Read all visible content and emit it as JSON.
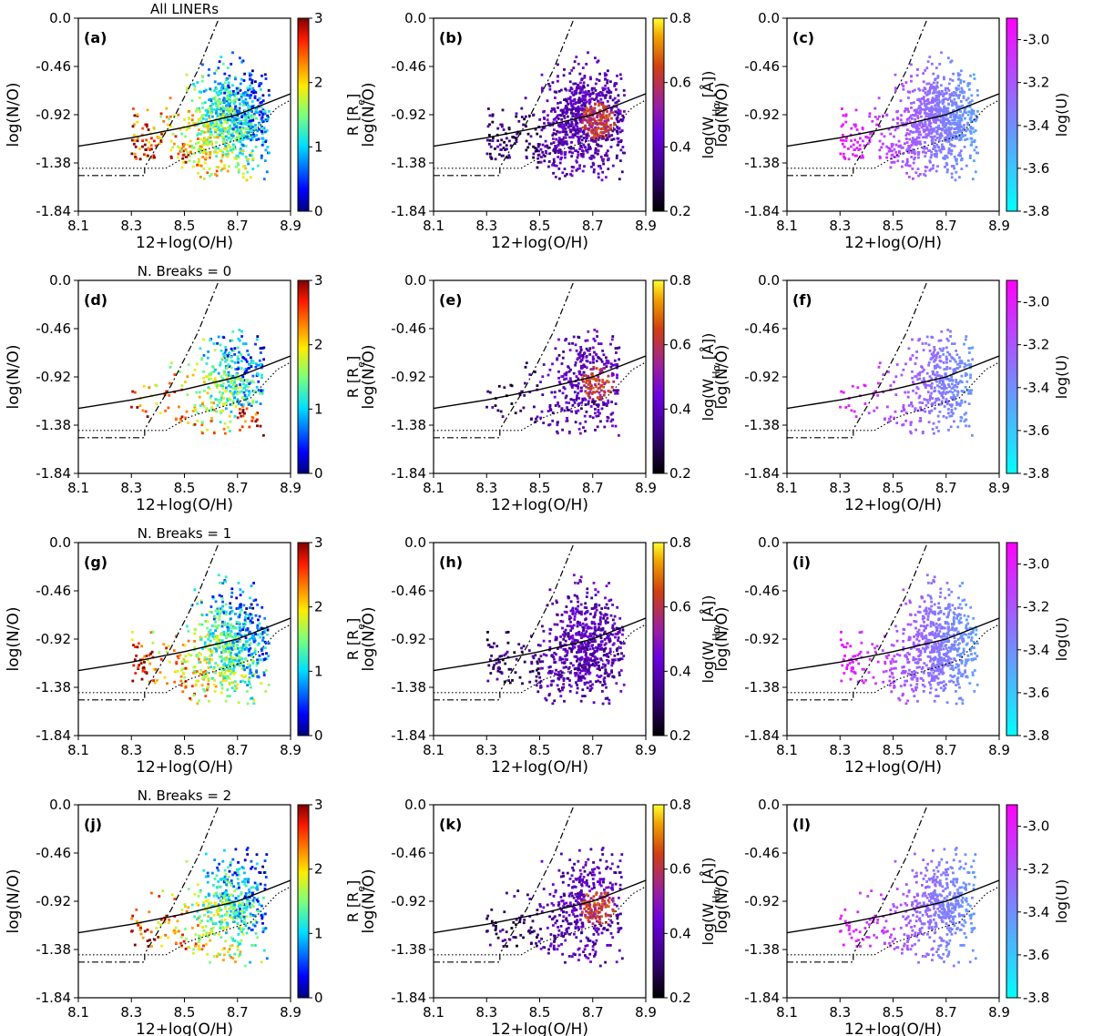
{
  "figure": {
    "row_titles": [
      "All LINERs",
      "N. Breaks = 0",
      "N. Breaks = 1",
      "N. Breaks = 2"
    ],
    "panel_labels": [
      [
        "(a)",
        "(b)",
        "(c)"
      ],
      [
        "(d)",
        "(e)",
        "(f)"
      ],
      [
        "(g)",
        "(h)",
        "(i)"
      ],
      [
        "(j)",
        "(k)",
        "(l)"
      ]
    ],
    "xlabel": "12+log(O/H)",
    "ylabel": "log(N/O)",
    "xlim": [
      8.1,
      8.9
    ],
    "ylim": [
      -1.84,
      0.0
    ],
    "xticks": [
      "8.1",
      "8.3",
      "8.5",
      "8.7",
      "8.9"
    ],
    "yticks": [
      "0.0",
      "-0.46",
      "-0.92",
      "-1.38",
      "-1.84"
    ]
  },
  "colorbars": [
    {
      "label": "R [Re]",
      "label_main": "R [R",
      "label_sub": "e",
      "label_end": "]",
      "range": [
        0,
        3
      ],
      "ticks": [
        "0",
        "1",
        "2",
        "3"
      ],
      "colormap": "jet"
    },
    {
      "label": "log(WHα [Å])",
      "label_main": "log(W",
      "label_sub": "Hα",
      "label_end": " [Å])",
      "range": [
        0.2,
        0.8
      ],
      "ticks": [
        "0.2",
        "0.4",
        "0.6",
        "0.8"
      ],
      "colormap": "gnuplot"
    },
    {
      "label": "log(U)",
      "label_main": "log(U)",
      "label_sub": "",
      "label_end": "",
      "range": [
        -3.8,
        -2.9
      ],
      "ticks": [
        "-3.8",
        "-3.6",
        "-3.4",
        "-3.2",
        "-3.0"
      ],
      "colormap": "cool"
    }
  ],
  "chart_data": {
    "type": "scatter",
    "description_grid": "4 rows x 3 columns of scatter panels",
    "reference_curves": {
      "solid": {
        "x": [
          8.1,
          8.3,
          8.5,
          8.7,
          8.9
        ],
        "y": [
          -1.22,
          -1.14,
          -1.04,
          -0.92,
          -0.72
        ]
      },
      "dashdot_steep": {
        "x": [
          8.1,
          8.35,
          8.35,
          8.45,
          8.55,
          8.63
        ],
        "y": [
          -1.5,
          -1.5,
          -1.42,
          -1.0,
          -0.5,
          0.0
        ]
      },
      "dotted": {
        "x": [
          8.1,
          8.43,
          8.52,
          8.75,
          8.85,
          8.9
        ],
        "y": [
          -1.43,
          -1.43,
          -1.3,
          -1.12,
          -0.85,
          -0.78
        ]
      }
    },
    "point_clouds": [
      {
        "row": "All LINERs",
        "x_range": [
          8.2,
          8.82
        ],
        "y_range": [
          -1.58,
          -0.27
        ],
        "n_points_approx": 2000
      },
      {
        "row": "N. Breaks = 0",
        "x_range": [
          8.25,
          8.8
        ],
        "y_range": [
          -1.5,
          -0.36
        ],
        "n_points_approx": 900
      },
      {
        "row": "N. Breaks = 1",
        "x_range": [
          8.2,
          8.82
        ],
        "y_range": [
          -1.58,
          -0.3
        ],
        "n_points_approx": 1500
      },
      {
        "row": "N. Breaks = 2",
        "x_range": [
          8.28,
          8.82
        ],
        "y_range": [
          -1.55,
          -0.27
        ],
        "n_points_approx": 1100
      }
    ]
  }
}
